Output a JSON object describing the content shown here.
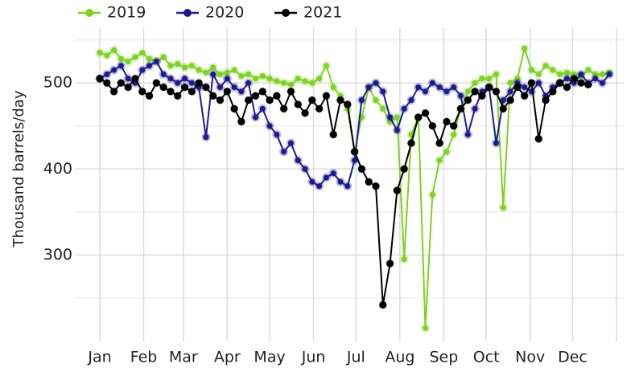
{
  "chart_data": {
    "type": "line",
    "y_label": "Thousand barrels/day",
    "xlim": [
      1,
      366
    ],
    "ylim": [
      205,
      560
    ],
    "xticks": [
      {
        "value": 1,
        "label": "Jan"
      },
      {
        "value": 32,
        "label": "Feb"
      },
      {
        "value": 60,
        "label": "Mar"
      },
      {
        "value": 91,
        "label": "Apr"
      },
      {
        "value": 121,
        "label": "May"
      },
      {
        "value": 152,
        "label": "Jun"
      },
      {
        "value": 182,
        "label": "Jul"
      },
      {
        "value": 213,
        "label": "Aug"
      },
      {
        "value": 244,
        "label": "Sep"
      },
      {
        "value": 274,
        "label": "Oct"
      },
      {
        "value": 305,
        "label": "Nov"
      },
      {
        "value": 335,
        "label": "Dec"
      }
    ],
    "xminor": [
      366
    ],
    "yticks": [
      300,
      400,
      500
    ],
    "yminor": [
      250,
      350,
      450,
      550
    ],
    "grid": true,
    "legend": "top",
    "x": [
      1,
      6,
      11,
      16,
      21,
      26,
      31,
      36,
      41,
      46,
      51,
      56,
      61,
      66,
      71,
      76,
      81,
      86,
      91,
      96,
      101,
      106,
      111,
      116,
      121,
      126,
      131,
      136,
      141,
      146,
      151,
      156,
      161,
      166,
      171,
      176,
      181,
      186,
      191,
      196,
      201,
      206,
      211,
      216,
      221,
      226,
      231,
      236,
      241,
      246,
      251,
      256,
      261,
      266,
      271,
      276,
      281,
      286,
      291,
      296,
      301,
      306,
      311,
      316,
      321,
      326,
      331,
      336,
      341,
      346,
      351,
      356,
      361
    ],
    "series": [
      {
        "name": "2019",
        "color": "#7ed321",
        "values": [
          535,
          532,
          538,
          528,
          525,
          530,
          535,
          528,
          525,
          530,
          520,
          522,
          518,
          520,
          515,
          512,
          518,
          510,
          512,
          515,
          508,
          510,
          505,
          508,
          505,
          502,
          500,
          498,
          505,
          502,
          500,
          505,
          520,
          495,
          485,
          470,
          420,
          460,
          495,
          480,
          470,
          455,
          460,
          295,
          440,
          460,
          215,
          370,
          410,
          420,
          440,
          470,
          490,
          500,
          505,
          505,
          510,
          355,
          500,
          505,
          540,
          515,
          510,
          520,
          515,
          510,
          512,
          510,
          508,
          515,
          510,
          510,
          512
        ]
      },
      {
        "name": "2020",
        "color": "#1c1c8f",
        "values": [
          505,
          510,
          515,
          520,
          505,
          500,
          515,
          520,
          525,
          510,
          505,
          500,
          505,
          500,
          495,
          437,
          510,
          495,
          505,
          495,
          490,
          500,
          460,
          470,
          450,
          440,
          420,
          430,
          410,
          400,
          385,
          380,
          390,
          395,
          385,
          380,
          410,
          480,
          495,
          500,
          490,
          460,
          445,
          470,
          480,
          495,
          490,
          500,
          495,
          490,
          495,
          485,
          440,
          470,
          490,
          495,
          430,
          480,
          490,
          500,
          495,
          490,
          500,
          485,
          495,
          500,
          505,
          500,
          510,
          500,
          505,
          500,
          510
        ]
      },
      {
        "name": "2021",
        "color": "#000000",
        "values": [
          505,
          500,
          490,
          500,
          495,
          505,
          490,
          485,
          500,
          495,
          490,
          485,
          495,
          490,
          500,
          495,
          485,
          480,
          490,
          470,
          455,
          480,
          485,
          490,
          480,
          485,
          470,
          490,
          475,
          465,
          480,
          470,
          485,
          440,
          480,
          475,
          420,
          400,
          385,
          380,
          242,
          290,
          375,
          400,
          430,
          460,
          465,
          450,
          430,
          455,
          450,
          470,
          480,
          490,
          485,
          495,
          490,
          470,
          480,
          495,
          485,
          500,
          435,
          480,
          490,
          500,
          495,
          505,
          500,
          498,
          null,
          null,
          null
        ]
      }
    ]
  }
}
